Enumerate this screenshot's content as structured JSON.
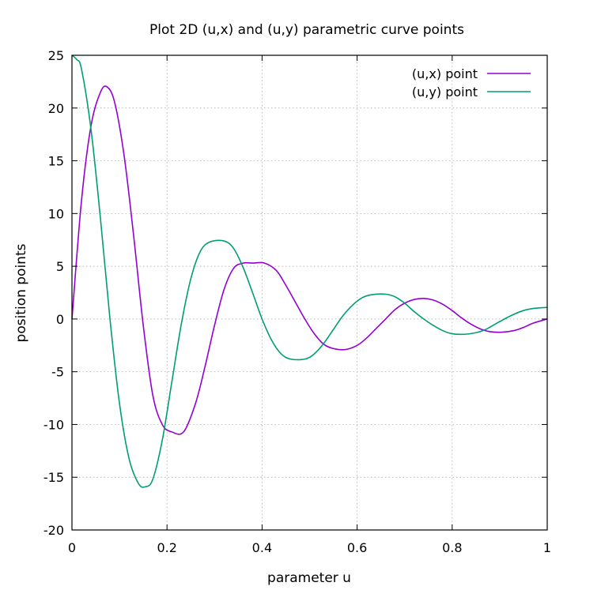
{
  "chart_data": {
    "type": "line",
    "title": "Plot 2D (u,x) and (u,y) parametric curve points",
    "xlabel": "parameter u",
    "ylabel": "position points",
    "xlim": [
      0,
      1
    ],
    "ylim": [
      -20,
      25
    ],
    "xticks": [
      "0",
      "0.2",
      "0.4",
      "0.6",
      "0.8",
      "1"
    ],
    "yticks": [
      "25",
      "20",
      "15",
      "10",
      "5",
      "0",
      "-5",
      "-10",
      "-15",
      "-20"
    ],
    "grid": true,
    "legend_position": "top-right",
    "series": [
      {
        "name": "(u,x) point",
        "color": "#9400d3",
        "x": [
          0,
          0.02,
          0.04,
          0.06,
          0.074,
          0.09,
          0.11,
          0.13,
          0.15,
          0.17,
          0.19,
          0.21,
          0.235,
          0.26,
          0.28,
          0.3,
          0.32,
          0.34,
          0.36,
          0.38,
          0.405,
          0.43,
          0.45,
          0.47,
          0.49,
          0.51,
          0.53,
          0.55,
          0.575,
          0.6,
          0.62,
          0.64,
          0.66,
          0.68,
          0.7,
          0.72,
          0.74,
          0.76,
          0.78,
          0.8,
          0.82,
          0.84,
          0.86,
          0.88,
          0.905,
          0.93,
          0.95,
          0.97,
          1.0
        ],
        "values": [
          0,
          11.2,
          18.3,
          21.5,
          22.0,
          20.5,
          15.4,
          7.8,
          -0.6,
          -7.2,
          -10.0,
          -10.7,
          -10.7,
          -8.0,
          -4.5,
          -0.6,
          2.8,
          4.8,
          5.3,
          5.3,
          5.3,
          4.6,
          3.2,
          1.6,
          0.0,
          -1.4,
          -2.4,
          -2.8,
          -2.9,
          -2.5,
          -1.8,
          -0.9,
          0.0,
          0.9,
          1.5,
          1.85,
          1.95,
          1.8,
          1.4,
          0.8,
          0.1,
          -0.5,
          -0.95,
          -1.2,
          -1.25,
          -1.1,
          -0.8,
          -0.4,
          0.0
        ]
      },
      {
        "name": "(u,y) point",
        "color": "#009e73",
        "x": [
          0,
          0.01,
          0.02,
          0.04,
          0.06,
          0.08,
          0.1,
          0.12,
          0.14,
          0.155,
          0.17,
          0.19,
          0.21,
          0.23,
          0.25,
          0.27,
          0.29,
          0.32,
          0.34,
          0.36,
          0.38,
          0.4,
          0.42,
          0.44,
          0.46,
          0.49,
          0.51,
          0.53,
          0.55,
          0.57,
          0.59,
          0.61,
          0.63,
          0.66,
          0.68,
          0.7,
          0.72,
          0.74,
          0.76,
          0.78,
          0.8,
          0.825,
          0.85,
          0.87,
          0.89,
          0.91,
          0.93,
          0.95,
          0.97,
          1.0
        ],
        "values": [
          25,
          24.6,
          23.7,
          18.0,
          9.5,
          0.0,
          -8.0,
          -13.2,
          -15.6,
          -15.9,
          -15.2,
          -11.5,
          -6.0,
          -0.5,
          3.8,
          6.4,
          7.3,
          7.4,
          6.7,
          4.9,
          2.5,
          0.0,
          -2.0,
          -3.3,
          -3.8,
          -3.8,
          -3.3,
          -2.3,
          -1.0,
          0.3,
          1.3,
          2.0,
          2.3,
          2.35,
          2.1,
          1.5,
          0.7,
          0.0,
          -0.6,
          -1.1,
          -1.4,
          -1.45,
          -1.3,
          -1.0,
          -0.5,
          0.0,
          0.45,
          0.8,
          1.0,
          1.1
        ]
      }
    ]
  }
}
